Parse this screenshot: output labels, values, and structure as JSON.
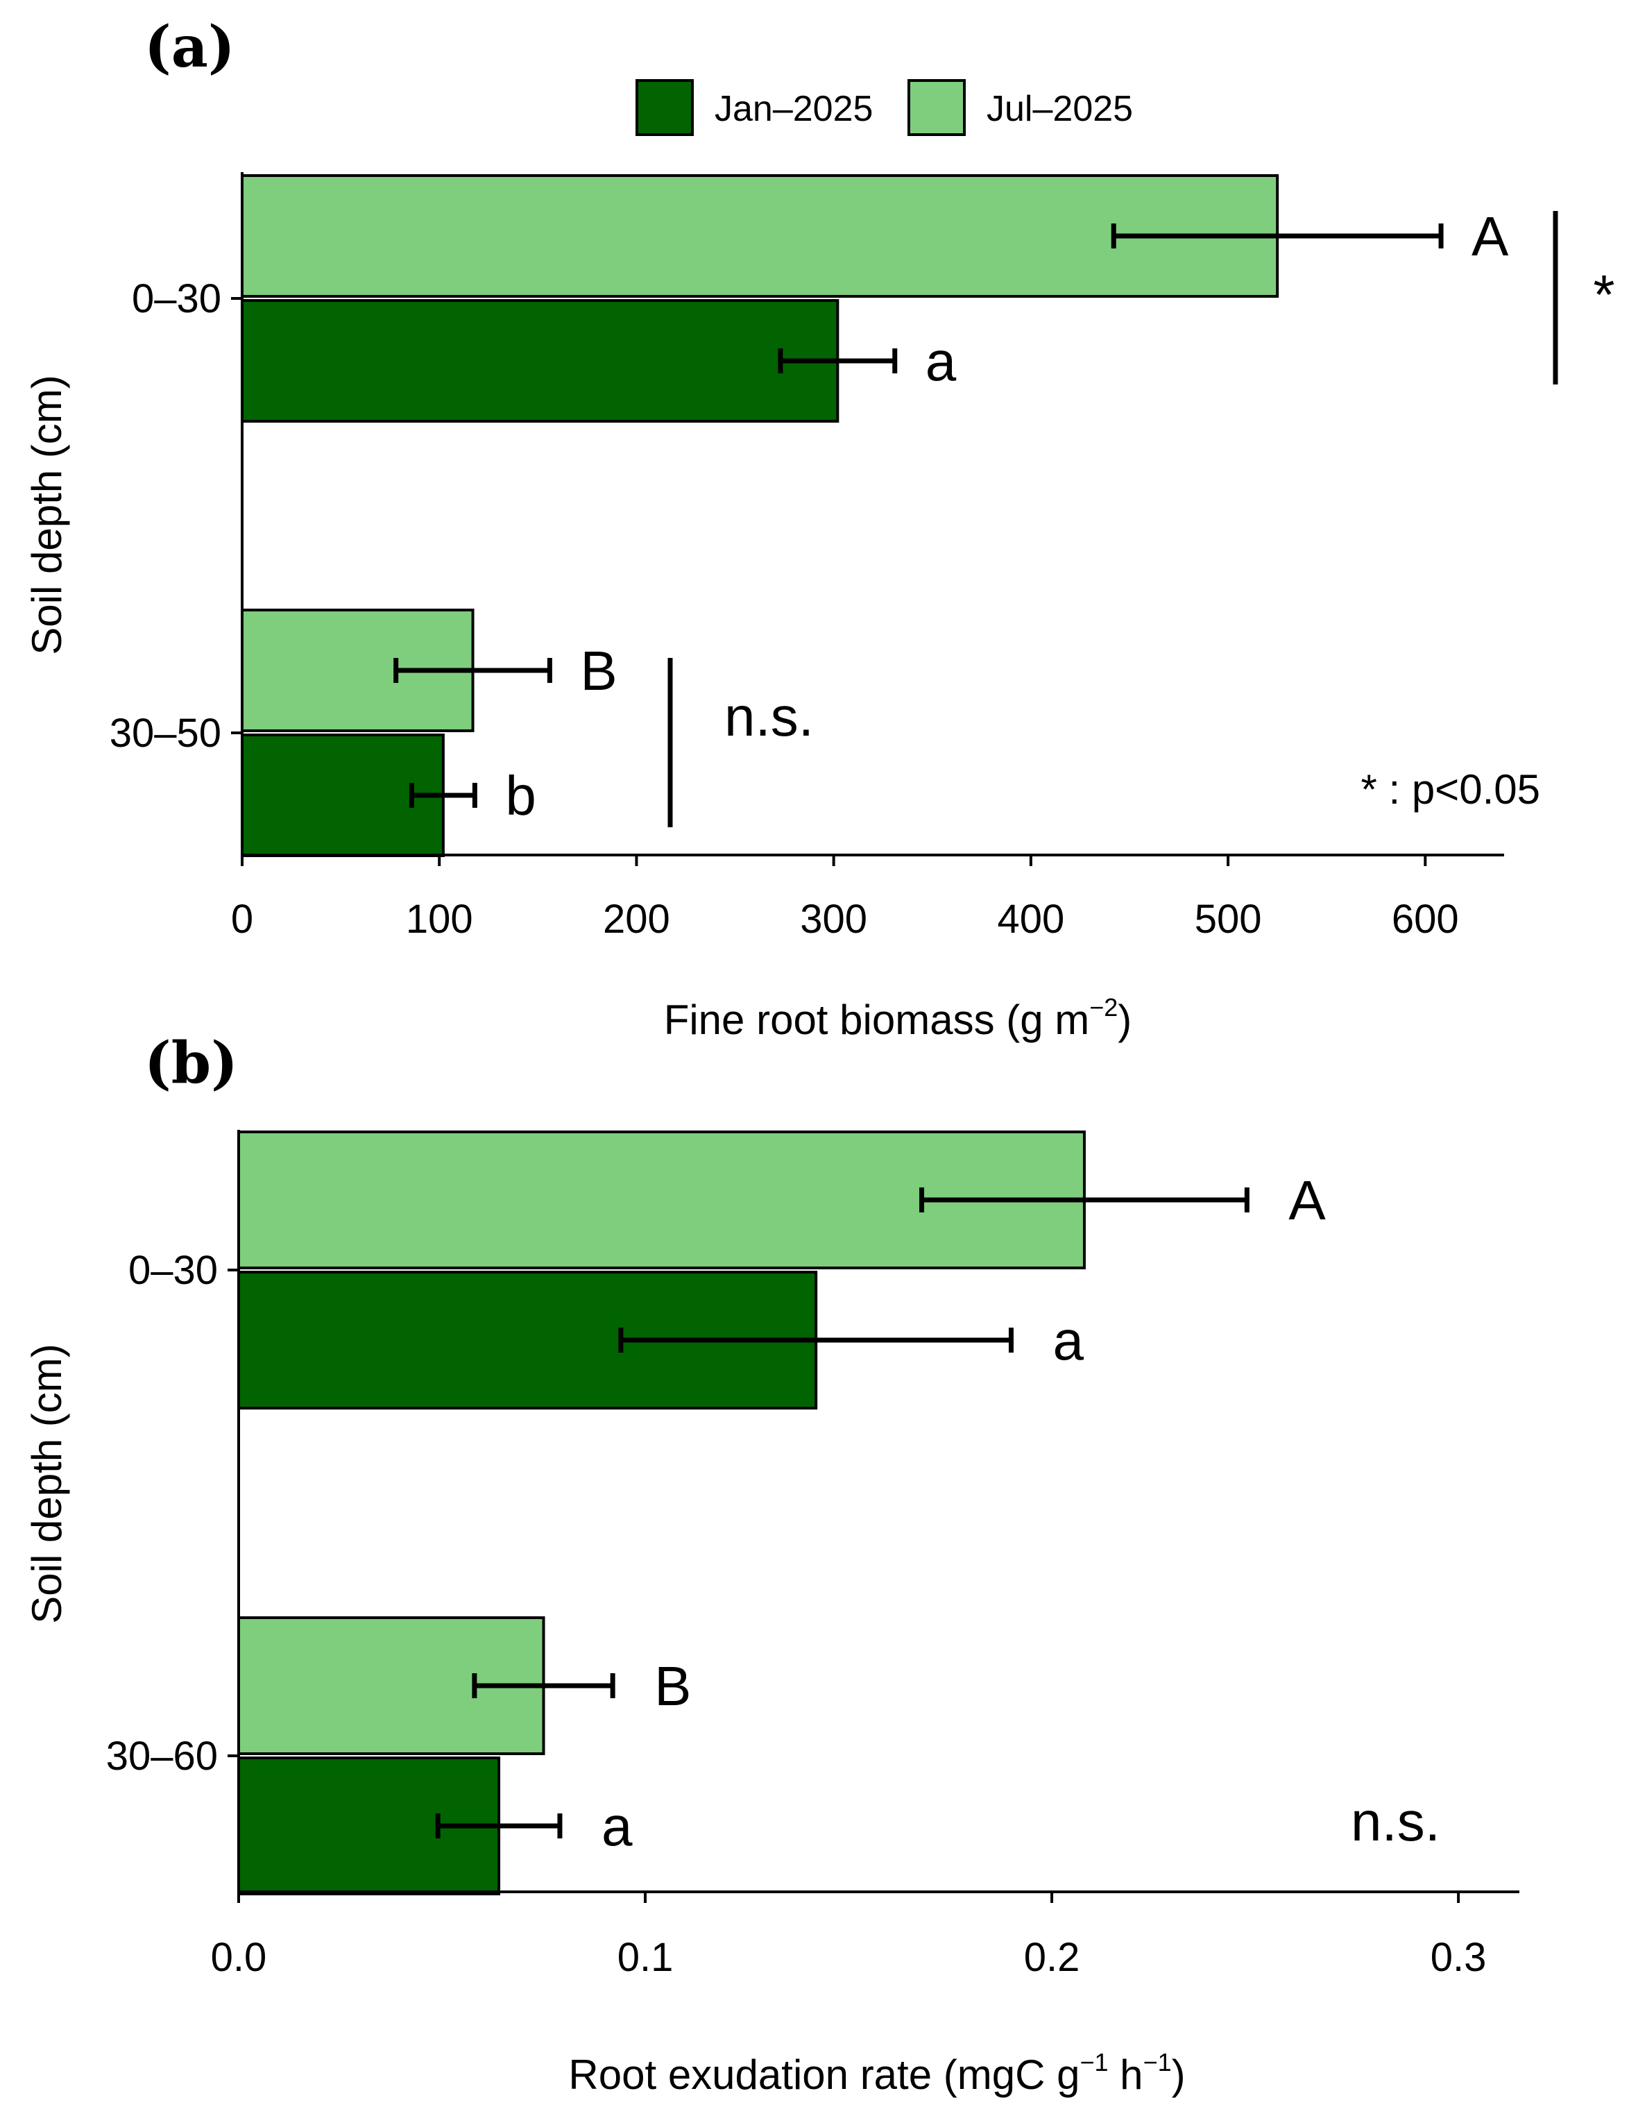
{
  "colors": {
    "jan": "#016401",
    "jul": "#7ece7e",
    "axis": "#000000"
  },
  "legend": [
    {
      "label": "Jan–2025",
      "color_key": "jan"
    },
    {
      "label": "Jul–2025",
      "color_key": "jul"
    }
  ],
  "chart_data": [
    {
      "type": "bar",
      "orientation": "horizontal",
      "panel_label": "(a)",
      "xlabel": "Fine root biomass (g m−2)",
      "xlabel_main": "Fine root biomass (g m",
      "xlabel_sup": "−2",
      "xlabel_close": ")",
      "ylabel": "Soil depth (cm)",
      "xlim": [
        0,
        640
      ],
      "xticks": [
        "0",
        "100",
        "200",
        "300",
        "400",
        "500",
        "600"
      ],
      "xtick_values": [
        0,
        100,
        200,
        300,
        400,
        500,
        600
      ],
      "categories": [
        "0–30",
        "30–50"
      ],
      "series": [
        {
          "name": "Jul–2025",
          "color_key": "jul",
          "values": [
            525,
            117
          ],
          "errors": [
            83,
            39
          ],
          "letters": [
            "A",
            "B"
          ]
        },
        {
          "name": "Jan–2025",
          "color_key": "jan",
          "values": [
            302,
            102
          ],
          "errors": [
            29,
            16
          ],
          "letters": [
            "a",
            "b"
          ]
        }
      ],
      "significance": [
        "*",
        "n.s."
      ],
      "note": "* : p<0.05"
    },
    {
      "type": "bar",
      "orientation": "horizontal",
      "panel_label": "(b)",
      "xlabel": "Root exudation rate (mgC g−1 h−1)",
      "xlabel_main": "Root exudation rate (mgC g",
      "xlabel_sup": "−1",
      "xlabel_mid": " h",
      "xlabel_sup2": "−1",
      "xlabel_close": ")",
      "ylabel": "Soil depth (cm)",
      "xlim": [
        0,
        0.315
      ],
      "xticks": [
        "0.0",
        "0.1",
        "0.2",
        "0.3"
      ],
      "xtick_values": [
        0,
        0.1,
        0.2,
        0.3
      ],
      "categories": [
        "0–30",
        "30–60"
      ],
      "series": [
        {
          "name": "Jul–2025",
          "color_key": "jul",
          "values": [
            0.208,
            0.075
          ],
          "errors": [
            0.04,
            0.017
          ],
          "letters": [
            "A",
            "B"
          ]
        },
        {
          "name": "Jan–2025",
          "color_key": "jan",
          "values": [
            0.142,
            0.064
          ],
          "errors": [
            0.048,
            0.015
          ],
          "letters": [
            "a",
            "a"
          ]
        }
      ],
      "significance": [
        "",
        "n.s."
      ]
    }
  ]
}
